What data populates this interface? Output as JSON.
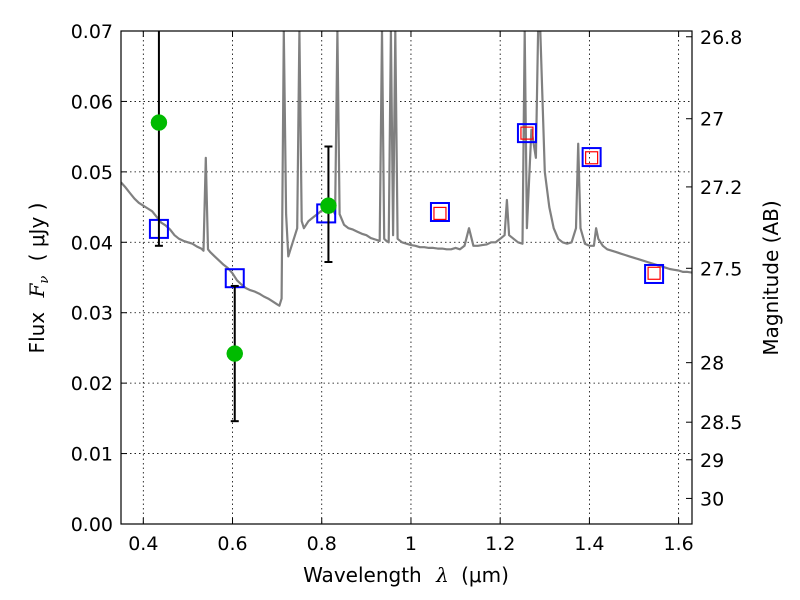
{
  "chart_data": {
    "type": "scatter",
    "xlabel_text": "Wavelength",
    "xlabel_symbol": "λ",
    "xlabel_unit": "(μm)",
    "ylabel_text": "Flux",
    "ylabel_symbol": "F",
    "ylabel_subscript": "ν",
    "ylabel_unit": "( μJy )",
    "y2label": "Magnitude (AB)",
    "xlim": [
      0.35,
      1.63
    ],
    "ylim": [
      0.0,
      0.07
    ],
    "grid": true,
    "x_ticks": [
      {
        "value": 0.4,
        "label": "0.4"
      },
      {
        "value": 0.6,
        "label": "0.6"
      },
      {
        "value": 0.8,
        "label": "0.8"
      },
      {
        "value": 1.0,
        "label": "1"
      },
      {
        "value": 1.2,
        "label": "1.2"
      },
      {
        "value": 1.4,
        "label": "1.4"
      },
      {
        "value": 1.6,
        "label": "1.6"
      }
    ],
    "y_ticks": [
      {
        "value": 0.0,
        "label": "0.00"
      },
      {
        "value": 0.01,
        "label": "0.01"
      },
      {
        "value": 0.02,
        "label": "0.02"
      },
      {
        "value": 0.03,
        "label": "0.03"
      },
      {
        "value": 0.04,
        "label": "0.04"
      },
      {
        "value": 0.05,
        "label": "0.05"
      },
      {
        "value": 0.06,
        "label": "0.06"
      },
      {
        "value": 0.07,
        "label": "0.07"
      }
    ],
    "y2_ticks": [
      {
        "value": 26.8,
        "label": "26.8"
      },
      {
        "value": 27.0,
        "label": "27"
      },
      {
        "value": 27.2,
        "label": "27.2"
      },
      {
        "value": 27.5,
        "label": "27.5"
      },
      {
        "value": 28.0,
        "label": "28"
      },
      {
        "value": 28.5,
        "label": "28.5"
      },
      {
        "value": 29.0,
        "label": "29"
      },
      {
        "value": 30.0,
        "label": "30"
      }
    ],
    "series": [
      {
        "kind": "model_spectrum",
        "color": "#808080",
        "points": [
          [
            0.35,
            0.0485
          ],
          [
            0.36,
            0.0478
          ],
          [
            0.37,
            0.047
          ],
          [
            0.38,
            0.0462
          ],
          [
            0.39,
            0.0456
          ],
          [
            0.4,
            0.0452
          ],
          [
            0.41,
            0.0448
          ],
          [
            0.42,
            0.0444
          ],
          [
            0.43,
            0.0436
          ],
          [
            0.44,
            0.0428
          ],
          [
            0.45,
            0.0424
          ],
          [
            0.46,
            0.0418
          ],
          [
            0.47,
            0.041
          ],
          [
            0.48,
            0.0405
          ],
          [
            0.49,
            0.0402
          ],
          [
            0.5,
            0.04
          ],
          [
            0.51,
            0.0398
          ],
          [
            0.52,
            0.0394
          ],
          [
            0.53,
            0.0391
          ],
          [
            0.535,
            0.0388
          ],
          [
            0.54,
            0.052
          ],
          [
            0.545,
            0.039
          ],
          [
            0.55,
            0.0386
          ],
          [
            0.56,
            0.038
          ],
          [
            0.57,
            0.0374
          ],
          [
            0.58,
            0.0368
          ],
          [
            0.59,
            0.0363
          ],
          [
            0.6,
            0.0356
          ],
          [
            0.61,
            0.0346
          ],
          [
            0.62,
            0.034
          ],
          [
            0.63,
            0.0335
          ],
          [
            0.64,
            0.0332
          ],
          [
            0.65,
            0.033
          ],
          [
            0.66,
            0.0327
          ],
          [
            0.67,
            0.0323
          ],
          [
            0.68,
            0.032
          ],
          [
            0.69,
            0.0316
          ],
          [
            0.7,
            0.0312
          ],
          [
            0.705,
            0.031
          ],
          [
            0.71,
            0.032
          ],
          [
            0.715,
            0.07
          ],
          [
            0.72,
            0.044
          ],
          [
            0.725,
            0.038
          ],
          [
            0.73,
            0.039
          ],
          [
            0.74,
            0.041
          ],
          [
            0.745,
            0.042
          ],
          [
            0.75,
            0.07
          ],
          [
            0.755,
            0.043
          ],
          [
            0.76,
            0.042
          ],
          [
            0.77,
            0.043
          ],
          [
            0.78,
            0.0435
          ],
          [
            0.79,
            0.044
          ],
          [
            0.8,
            0.0445
          ],
          [
            0.81,
            0.045
          ],
          [
            0.82,
            0.0452
          ],
          [
            0.83,
            0.044
          ],
          [
            0.835,
            0.07
          ],
          [
            0.84,
            0.044
          ],
          [
            0.85,
            0.0425
          ],
          [
            0.86,
            0.042
          ],
          [
            0.87,
            0.0418
          ],
          [
            0.88,
            0.0415
          ],
          [
            0.89,
            0.0412
          ],
          [
            0.9,
            0.041
          ],
          [
            0.91,
            0.0406
          ],
          [
            0.92,
            0.0404
          ],
          [
            0.93,
            0.0402
          ],
          [
            0.935,
            0.07
          ],
          [
            0.94,
            0.0405
          ],
          [
            0.945,
            0.0402
          ],
          [
            0.95,
            0.04
          ],
          [
            0.955,
            0.07
          ],
          [
            0.96,
            0.041
          ],
          [
            0.965,
            0.07
          ],
          [
            0.97,
            0.0405
          ],
          [
            0.98,
            0.04
          ],
          [
            0.99,
            0.0398
          ],
          [
            1.0,
            0.0396
          ],
          [
            1.01,
            0.0395
          ],
          [
            1.02,
            0.0393
          ],
          [
            1.03,
            0.0393
          ],
          [
            1.04,
            0.0392
          ],
          [
            1.05,
            0.0392
          ],
          [
            1.06,
            0.0391
          ],
          [
            1.07,
            0.0391
          ],
          [
            1.08,
            0.039
          ],
          [
            1.09,
            0.039
          ],
          [
            1.1,
            0.0392
          ],
          [
            1.11,
            0.039
          ],
          [
            1.12,
            0.0395
          ],
          [
            1.13,
            0.042
          ],
          [
            1.14,
            0.0395
          ],
          [
            1.15,
            0.0395
          ],
          [
            1.16,
            0.0396
          ],
          [
            1.17,
            0.0397
          ],
          [
            1.18,
            0.04
          ],
          [
            1.19,
            0.04
          ],
          [
            1.2,
            0.0405
          ],
          [
            1.21,
            0.041
          ],
          [
            1.215,
            0.046
          ],
          [
            1.22,
            0.041
          ],
          [
            1.23,
            0.0405
          ],
          [
            1.24,
            0.04
          ],
          [
            1.25,
            0.0398
          ],
          [
            1.255,
            0.07
          ],
          [
            1.26,
            0.042
          ],
          [
            1.27,
            0.056
          ],
          [
            1.28,
            0.052
          ],
          [
            1.285,
            0.07
          ],
          [
            1.29,
            0.07
          ],
          [
            1.3,
            0.05
          ],
          [
            1.31,
            0.045
          ],
          [
            1.32,
            0.042
          ],
          [
            1.33,
            0.0405
          ],
          [
            1.34,
            0.04
          ],
          [
            1.35,
            0.0398
          ],
          [
            1.36,
            0.04
          ],
          [
            1.37,
            0.042
          ],
          [
            1.375,
            0.054
          ],
          [
            1.38,
            0.042
          ],
          [
            1.39,
            0.0398
          ],
          [
            1.4,
            0.0395
          ],
          [
            1.41,
            0.0395
          ],
          [
            1.415,
            0.042
          ],
          [
            1.42,
            0.0405
          ],
          [
            1.43,
            0.0395
          ],
          [
            1.44,
            0.039
          ],
          [
            1.45,
            0.0388
          ],
          [
            1.46,
            0.0386
          ],
          [
            1.47,
            0.0384
          ],
          [
            1.48,
            0.0382
          ],
          [
            1.49,
            0.038
          ],
          [
            1.5,
            0.0378
          ],
          [
            1.51,
            0.0376
          ],
          [
            1.52,
            0.0374
          ],
          [
            1.53,
            0.0372
          ],
          [
            1.54,
            0.037
          ],
          [
            1.55,
            0.0368
          ],
          [
            1.56,
            0.0366
          ],
          [
            1.57,
            0.0364
          ],
          [
            1.58,
            0.0362
          ],
          [
            1.59,
            0.0361
          ],
          [
            1.6,
            0.036
          ],
          [
            1.61,
            0.0358
          ],
          [
            1.62,
            0.0358
          ],
          [
            1.63,
            0.0357
          ]
        ]
      },
      {
        "kind": "model_photometry",
        "marker": "open_square",
        "color": "#0000ff",
        "points": [
          [
            0.435,
            0.0419
          ],
          [
            0.605,
            0.0349
          ],
          [
            0.81,
            0.0441
          ],
          [
            1.065,
            0.0443
          ],
          [
            1.26,
            0.0555
          ],
          [
            1.405,
            0.0521
          ],
          [
            1.545,
            0.0355
          ]
        ]
      },
      {
        "kind": "observed_upper_limit",
        "marker": "open_square_small",
        "color": "#ff0000",
        "points": [
          [
            1.065,
            0.0441
          ],
          [
            1.26,
            0.0555
          ],
          [
            1.405,
            0.052
          ],
          [
            1.545,
            0.0356
          ]
        ]
      },
      {
        "kind": "observed",
        "marker": "filled_circle",
        "color": "#00bb00",
        "error_color": "#000000",
        "points": [
          {
            "x": 0.435,
            "y": 0.057,
            "yerr_low": 0.0395,
            "yerr_high": 0.07
          },
          {
            "x": 0.605,
            "y": 0.0242,
            "yerr_low": 0.0146,
            "yerr_high": 0.0338
          },
          {
            "x": 0.815,
            "y": 0.0452,
            "yerr_low": 0.0372,
            "yerr_high": 0.0536
          }
        ]
      }
    ]
  }
}
